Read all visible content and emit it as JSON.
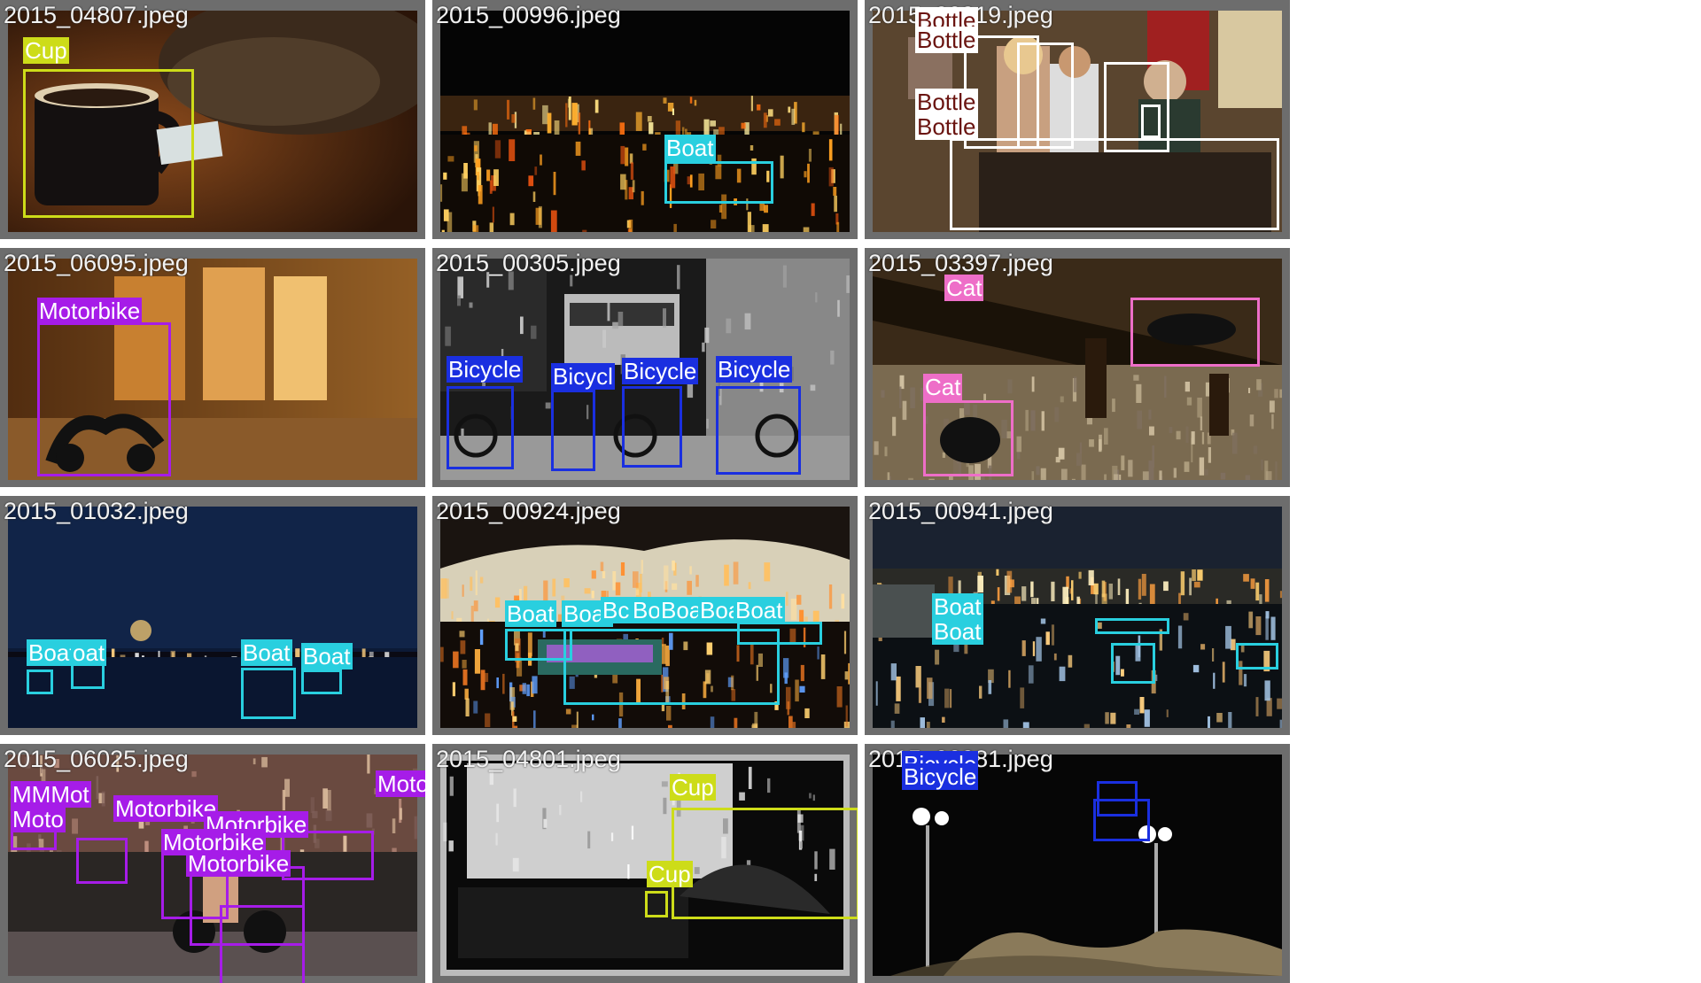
{
  "grid": {
    "tiles": [
      {
        "filename": "2015_04807.jpeg",
        "scene": "warm",
        "labels": [
          {
            "text": "Cup",
            "cls": "cup"
          }
        ]
      },
      {
        "filename": "2015_00996.jpeg",
        "scene": "harbor-night",
        "labels": [
          {
            "text": "Boat",
            "cls": "boat"
          }
        ]
      },
      {
        "filename": "2015_00919.jpeg",
        "scene": "bar",
        "labels": [
          {
            "text": "Bottle",
            "cls": "bottle"
          },
          {
            "text": "Bottle",
            "cls": "bottle"
          },
          {
            "text": "Bottle",
            "cls": "bottle"
          },
          {
            "text": "Bottle",
            "cls": "bottle"
          }
        ]
      },
      {
        "filename": "2015_06095.jpeg",
        "scene": "street-warm",
        "labels": [
          {
            "text": "Motorbike",
            "cls": "motorbike"
          }
        ]
      },
      {
        "filename": "2015_00305.jpeg",
        "scene": "mono-street",
        "labels": [
          {
            "text": "Bicycle",
            "cls": "bicycle"
          },
          {
            "text": "Bicycl",
            "cls": "bicycle"
          },
          {
            "text": "Bicycle",
            "cls": "bicycle"
          },
          {
            "text": "Bicycle",
            "cls": "bicycle"
          }
        ]
      },
      {
        "filename": "2015_03397.jpeg",
        "scene": "rail-dark",
        "labels": [
          {
            "text": "Cat",
            "cls": "cat"
          },
          {
            "text": "Cat",
            "cls": "cat"
          }
        ]
      },
      {
        "filename": "2015_01032.jpeg",
        "scene": "lake-night",
        "labels": [
          {
            "text": "Boat",
            "cls": "boat"
          },
          {
            "text": "oat",
            "cls": "boat"
          },
          {
            "text": "Boat",
            "cls": "boat"
          },
          {
            "text": "Boat",
            "cls": "boat"
          }
        ]
      },
      {
        "filename": "2015_00924.jpeg",
        "scene": "canal-night",
        "labels": [
          {
            "text": "Boat",
            "cls": "boat"
          },
          {
            "text": "Boat",
            "cls": "boat"
          },
          {
            "text": "Bc",
            "cls": "boat"
          },
          {
            "text": "Bo",
            "cls": "boat"
          },
          {
            "text": "Boa",
            "cls": "boat"
          },
          {
            "text": "Boa",
            "cls": "boat"
          },
          {
            "text": "Boat",
            "cls": "boat"
          }
        ]
      },
      {
        "filename": "2015_00941.jpeg",
        "scene": "river-night",
        "labels": [
          {
            "text": "Boat",
            "cls": "boat"
          },
          {
            "text": "Boat",
            "cls": "boat"
          }
        ]
      },
      {
        "filename": "2015_06025.jpeg",
        "scene": "race-street",
        "labels": [
          {
            "text": "Motorbike",
            "cls": "motorbike"
          },
          {
            "text": "Motorbike",
            "cls": "motorbike"
          },
          {
            "text": "Motorbike",
            "cls": "motorbike"
          },
          {
            "text": "Motorbike",
            "cls": "motorbike"
          },
          {
            "text": "Motorbike",
            "cls": "motorbike"
          },
          {
            "text": "MMMot",
            "cls": "motorbike"
          },
          {
            "text": "Moto",
            "cls": "motorbike"
          }
        ]
      },
      {
        "filename": "2015_04801.jpeg",
        "scene": "mono-room",
        "labels": [
          {
            "text": "Cup",
            "cls": "cup"
          },
          {
            "text": "Cup",
            "cls": "cup"
          }
        ]
      },
      {
        "filename": "2015_00981.jpeg",
        "scene": "stadium-night",
        "labels": [
          {
            "text": "Bicycle",
            "cls": "bicycle"
          },
          {
            "text": "Bicycle",
            "cls": "bicycle"
          }
        ]
      }
    ]
  },
  "colors": {
    "cup": "#cddc19",
    "boat": "#29cfdf",
    "bottle": "#ffffff",
    "motorbike": "#a61ce8",
    "bicycle": "#1a2fe0",
    "cat": "#ee6ec8",
    "tile_border": "#6d6d6d",
    "filename_text": "#f2f2f2"
  }
}
